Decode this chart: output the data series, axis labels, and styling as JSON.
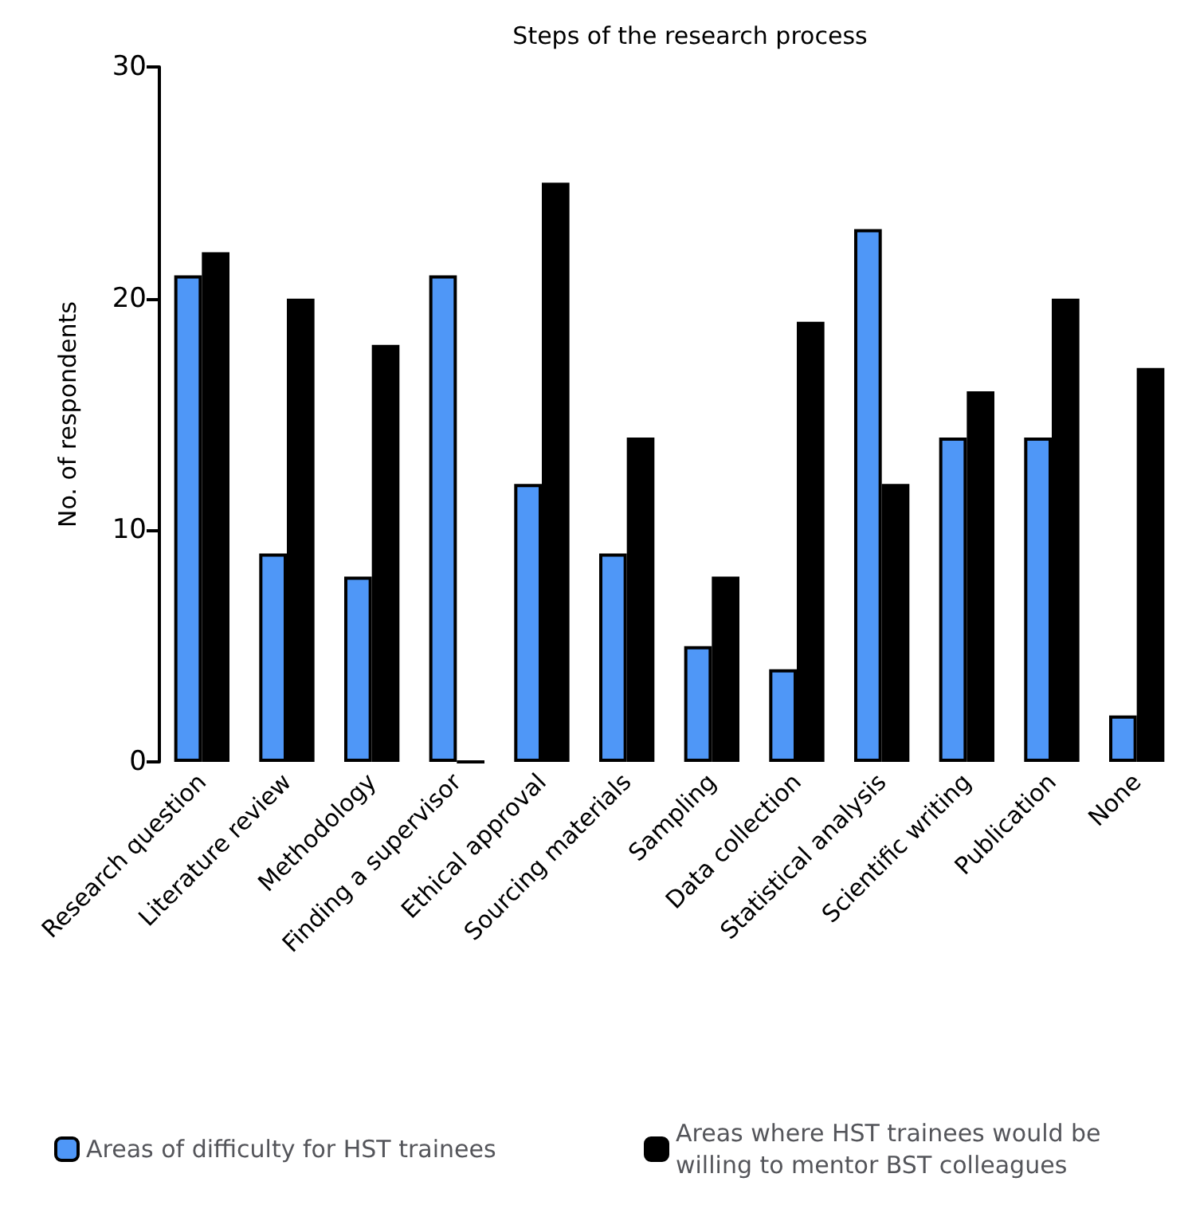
{
  "chart_data": {
    "type": "bar",
    "title": "Steps of the research process",
    "ylabel": "No. of respondents",
    "categories": [
      "Research question",
      "Literature review",
      "Methodology",
      "Finding a supervisor",
      "Ethical approval",
      "Sourcing materials",
      "Sampling",
      "Data collection",
      "Statistical analysis",
      "Scientific writing",
      "Publication",
      "None"
    ],
    "series": [
      {
        "name": "Areas of difficulty for HST trainees",
        "color": "#4f97f7",
        "values": [
          21,
          9,
          8,
          21,
          12,
          9,
          5,
          4,
          23,
          14,
          14,
          2
        ]
      },
      {
        "name": "Areas where HST trainees would be willing to mentor BST colleagues",
        "color": "#000000",
        "values": [
          22,
          20,
          18,
          0,
          25,
          14,
          8,
          19,
          12,
          16,
          20,
          17
        ]
      }
    ],
    "ylim": [
      0,
      30
    ],
    "yticks": [
      0,
      10,
      20,
      30
    ],
    "grid": false,
    "legend": "bottom"
  }
}
